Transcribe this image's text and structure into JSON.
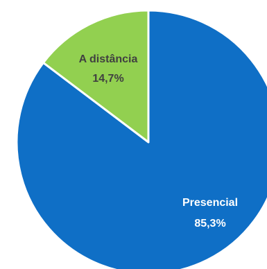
{
  "chart_data": {
    "type": "pie",
    "slices": [
      {
        "label": "Presencial",
        "value": 85.3,
        "value_label": "85,3%",
        "color": "#0f6fc6",
        "text_color": "#ffffff"
      },
      {
        "label": "A distância",
        "value": 14.7,
        "value_label": "14,7%",
        "color": "#92d050",
        "text_color": "#404040"
      }
    ],
    "start_angle_deg": 0,
    "direction": "clockwise",
    "slice_border_color": "#ffffff"
  }
}
